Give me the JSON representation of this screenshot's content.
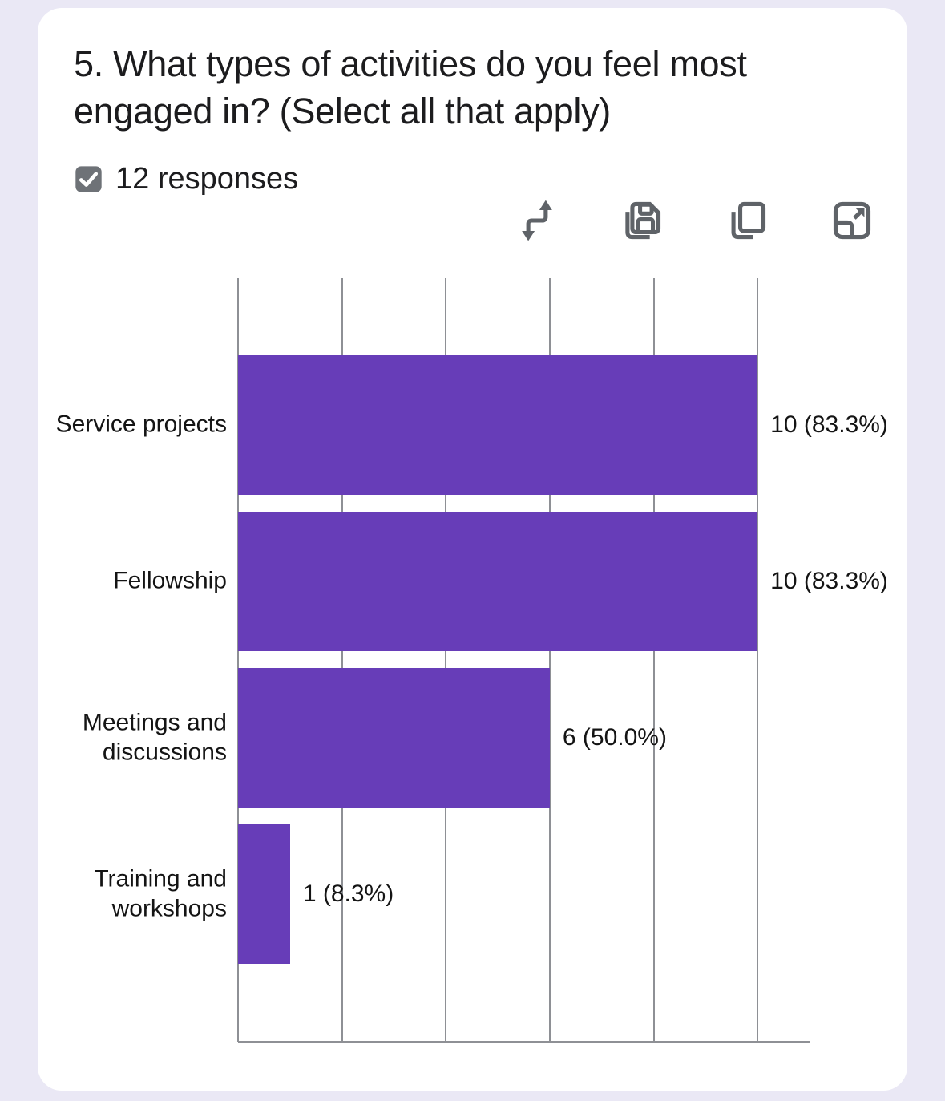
{
  "question": {
    "title": "5. What types of activities do you feel most engaged in? (Select all that apply)",
    "responses_label": "12 responses"
  },
  "toolbar": {
    "icons": [
      "swap-vertical-arrows-icon",
      "save-icon",
      "copy-icon",
      "open-expand-icon"
    ]
  },
  "chart_data": {
    "type": "bar",
    "orientation": "horizontal",
    "categories": [
      "Service projects",
      "Fellowship",
      "Meetings and discussions",
      "Training and workshops"
    ],
    "values": [
      10,
      10,
      6,
      1
    ],
    "value_labels": [
      "10 (83.3%)",
      "10 (83.3%)",
      "6 (50.0%)",
      "1 (8.3%)"
    ],
    "total_responses": 12,
    "xlim": [
      0,
      11
    ],
    "gridline_values": [
      0,
      2,
      4,
      6,
      8,
      10
    ],
    "grid": true,
    "legend": false,
    "bar_color": "#673DB8"
  },
  "colors": {
    "page_background": "#EAE8F5",
    "card_background": "#FFFFFF",
    "bar": "#673DB8",
    "gridline": "#8E9095",
    "icon": "#5F6368",
    "checkbox": "#6E7277",
    "text": "#1C1C1E"
  }
}
